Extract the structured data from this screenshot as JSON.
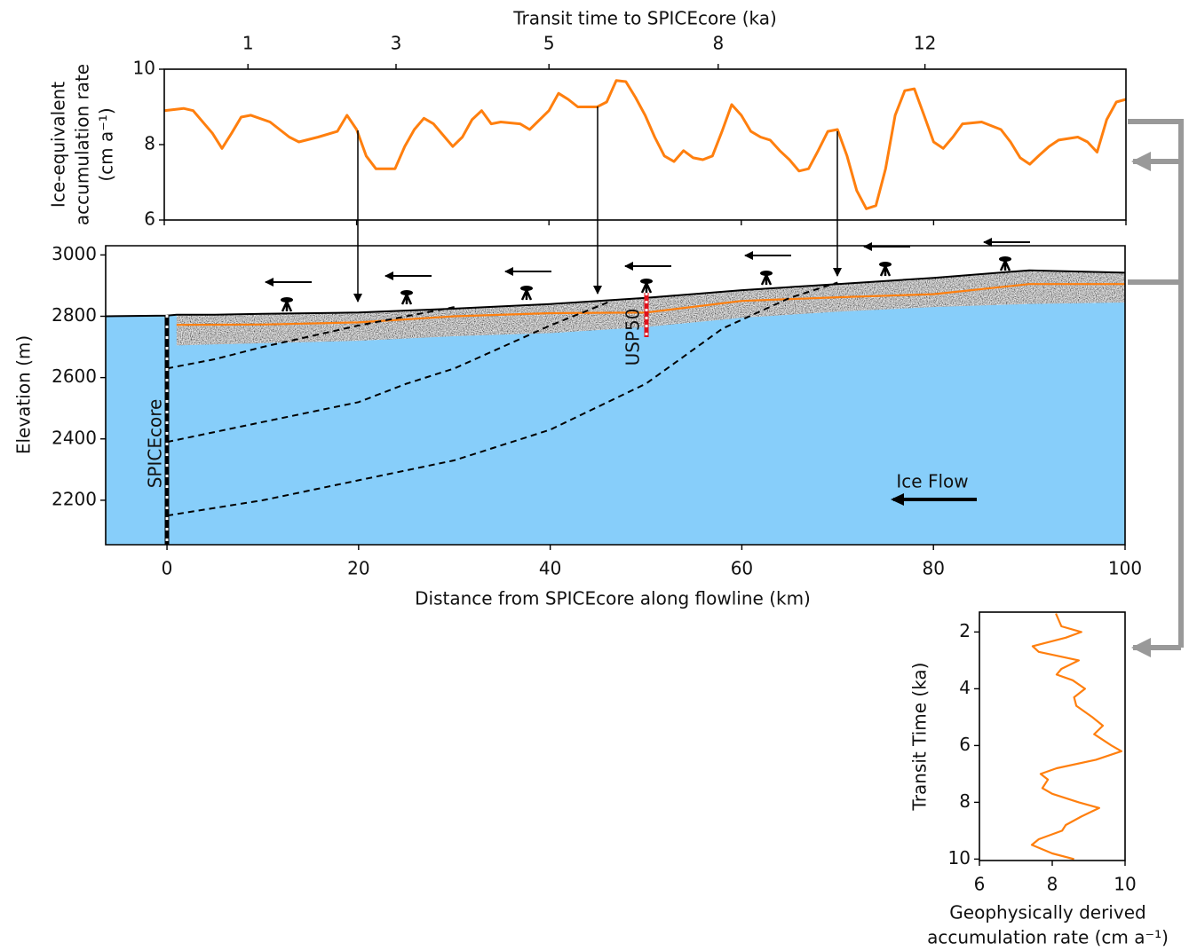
{
  "chart_data": [
    {
      "type": "line",
      "x2_label": "Transit time to SPICEcore (ka)",
      "y_label": [
        "Ice-equivalent",
        "accumulation rate",
        "(cm a⁻¹)"
      ],
      "xlim": [
        0,
        100
      ],
      "ylim": [
        6,
        10
      ],
      "xticks": [
        0,
        20,
        40,
        60,
        80,
        100
      ],
      "yticks": [
        6,
        8,
        10
      ],
      "x2ticks": [
        {
          "value": 8.7,
          "label": "1"
        },
        {
          "value": 24.1,
          "label": "3"
        },
        {
          "value": 40,
          "label": "5"
        },
        {
          "value": 57.6,
          "label": "8"
        },
        {
          "value": 79.1,
          "label": "12"
        }
      ],
      "series": [
        {
          "color": "#ff7f0e",
          "x": [
            0,
            2,
            3,
            5,
            6,
            7,
            8,
            9,
            11,
            13,
            14,
            16,
            18,
            19,
            20,
            21,
            22,
            24,
            25,
            26,
            27,
            28,
            30,
            31,
            32,
            33,
            34,
            35,
            37,
            38,
            40,
            41,
            42,
            43,
            45,
            46,
            47,
            48,
            49,
            50,
            51,
            52,
            53,
            54,
            55,
            56,
            57,
            58,
            59,
            60,
            61,
            62,
            63,
            64,
            65,
            66,
            67,
            68,
            69,
            70,
            71,
            72,
            73,
            74,
            75,
            76,
            77,
            78,
            79,
            80,
            81,
            82,
            83,
            85,
            87,
            88,
            89,
            90,
            91,
            92,
            93,
            95,
            96,
            97,
            98,
            99,
            100
          ],
          "values": [
            8.9,
            8.96,
            8.9,
            8.3,
            7.9,
            8.3,
            8.73,
            8.78,
            8.6,
            8.2,
            8.07,
            8.2,
            8.35,
            8.78,
            8.4,
            7.7,
            7.36,
            7.36,
            7.95,
            8.4,
            8.7,
            8.55,
            7.95,
            8.2,
            8.66,
            8.9,
            8.55,
            8.6,
            8.55,
            8.4,
            8.9,
            9.36,
            9.2,
            9,
            9,
            9.13,
            9.7,
            9.67,
            9.25,
            8.78,
            8.2,
            7.7,
            7.55,
            7.84,
            7.65,
            7.6,
            7.7,
            8.35,
            9.06,
            8.78,
            8.35,
            8.2,
            8.12,
            7.84,
            7.6,
            7.3,
            7.36,
            7.84,
            8.35,
            8.4,
            7.7,
            6.78,
            6.3,
            6.38,
            7.36,
            8.78,
            9.43,
            9.48,
            8.78,
            8.07,
            7.9,
            8.2,
            8.55,
            8.6,
            8.4,
            8.07,
            7.65,
            7.48,
            7.72,
            7.95,
            8.12,
            8.2,
            8.07,
            7.8,
            8.66,
            9.13,
            9.2
          ]
        }
      ]
    },
    {
      "type": "section",
      "x_label": "Distance from SPICEcore along flowline (km)",
      "y_label": "Elevation (m)",
      "xlim": [
        -6.4,
        100
      ],
      "ylim": [
        2055,
        3030
      ],
      "xticks": [
        0,
        20,
        40,
        60,
        80,
        100
      ],
      "yticks": [
        2200,
        2400,
        2600,
        2800,
        3000
      ],
      "ice_color": "#87cefa",
      "surface": {
        "x": [
          -6.4,
          0,
          1,
          5,
          10,
          20,
          30,
          40,
          50,
          60,
          70,
          80,
          90,
          100
        ],
        "values": [
          2800,
          2802,
          2805,
          2805,
          2808,
          2812,
          2825,
          2840,
          2860,
          2885,
          2905,
          2925,
          2950,
          2942
        ]
      },
      "radar_base": {
        "x": [
          1,
          10,
          20,
          30,
          40,
          50,
          60,
          70,
          80,
          90,
          100
        ],
        "values": [
          2705,
          2712,
          2720,
          2735,
          2745,
          2765,
          2795,
          2815,
          2830,
          2840,
          2845
        ]
      },
      "horizon": {
        "color": "#ff7f0e",
        "x": [
          1,
          10,
          20,
          30,
          40,
          50,
          60,
          70,
          80,
          90,
          100
        ],
        "values": [
          2772,
          2773,
          2780,
          2800,
          2810,
          2812,
          2850,
          2862,
          2872,
          2905,
          2905
        ]
      },
      "isochrones": [
        {
          "x": [
            0,
            5,
            10,
            15,
            20,
            25,
            30
          ],
          "values": [
            2630,
            2660,
            2700,
            2735,
            2770,
            2800,
            2830
          ]
        },
        {
          "x": [
            0,
            10,
            20,
            25,
            30,
            35,
            40,
            46
          ],
          "values": [
            2390,
            2455,
            2520,
            2580,
            2630,
            2700,
            2770,
            2845
          ]
        },
        {
          "x": [
            0,
            10,
            20,
            30,
            40,
            50,
            58,
            65,
            70
          ],
          "values": [
            2150,
            2200,
            2265,
            2330,
            2430,
            2580,
            2760,
            2860,
            2910
          ]
        }
      ],
      "labels": [
        "SPICEcore",
        "USP50",
        "Ice Flow"
      ]
    },
    {
      "type": "profile",
      "x_label": [
        "Geophysically derived",
        "accumulation rate (cm a⁻¹)"
      ],
      "y_label": "Transit Time (ka)",
      "xlim": [
        6,
        10
      ],
      "ylim": [
        1.3,
        10.05
      ],
      "y_inverted": true,
      "xticks": [
        6,
        8,
        10
      ],
      "yticks": [
        2,
        4,
        6,
        8,
        10
      ],
      "series": [
        {
          "color": "#ff7f0e",
          "transit_time": [
            1.35,
            1.8,
            2,
            2.2,
            2.5,
            2.7,
            3,
            3.3,
            3.5,
            3.7,
            4,
            4.3,
            4.6,
            5,
            5.3,
            5.6,
            6,
            6.2,
            6.5,
            6.8,
            7,
            7.2,
            7.5,
            7.7,
            8,
            8.2,
            8.5,
            8.8,
            9,
            9.3,
            9.5,
            9.8,
            10
          ],
          "values": [
            8.1,
            8.25,
            8.8,
            8.37,
            7.46,
            7.63,
            8.73,
            8.25,
            8.12,
            8.56,
            8.9,
            8.6,
            8.66,
            9.1,
            9.39,
            9.15,
            9.63,
            9.9,
            9.2,
            8.12,
            7.68,
            7.88,
            7.73,
            8,
            8.73,
            9.29,
            8.8,
            8.37,
            8.27,
            7.63,
            7.44,
            8,
            8.6
          ]
        }
      ]
    }
  ]
}
